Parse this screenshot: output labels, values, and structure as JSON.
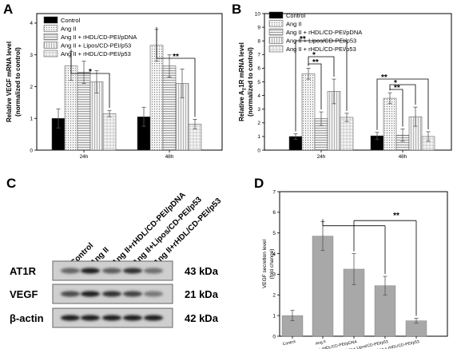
{
  "panels": {
    "A": "A",
    "B": "B",
    "C": "C",
    "D": "D"
  },
  "blot": {
    "lanes": [
      "Control",
      "Ang II",
      "Ang II+rHDL/CD-PEI/pDNA",
      "Ang II+Lipos/CD-PEI/p53",
      "Ang II+rHDL/CD-PEI/p53"
    ],
    "rows": [
      {
        "name": "AT1R",
        "size": "43 kDa",
        "intensity": [
          0.55,
          0.95,
          0.6,
          0.85,
          0.5
        ]
      },
      {
        "name": "VEGF",
        "size": "21 kDa",
        "intensity": [
          0.7,
          0.95,
          0.85,
          0.75,
          0.45
        ]
      },
      {
        "name": "β-actin",
        "size": "42 kDa",
        "intensity": [
          0.95,
          0.95,
          0.95,
          0.95,
          0.95
        ]
      }
    ]
  },
  "chart_data": [
    {
      "type": "bar",
      "panel": "A",
      "categories": [
        "24h",
        "48h"
      ],
      "ylabel": "Relative VEGF mRNA level (normalized to control)",
      "ylim": [
        0,
        4.3
      ],
      "yticks": [
        0,
        1,
        2,
        3,
        4
      ],
      "legend_position": "top-left",
      "series": [
        {
          "name": "Control",
          "values": [
            1.0,
            1.05
          ],
          "errors": [
            0.3,
            0.3
          ]
        },
        {
          "name": "Ang II",
          "values": [
            2.65,
            3.3
          ],
          "errors": [
            0.45,
            0.5
          ]
        },
        {
          "name": "Ang II + rHDL/CD-PEI/pDNA",
          "values": [
            2.45,
            2.65
          ],
          "errors": [
            0.35,
            0.35
          ]
        },
        {
          "name": "Ang II + Lipos/CD-PEI/p53",
          "values": [
            2.15,
            2.1
          ],
          "errors": [
            0.35,
            0.45
          ]
        },
        {
          "name": "Ang II + rHDL/CD-PEI/p53",
          "values": [
            1.15,
            0.82
          ],
          "errors": [
            0.1,
            0.15
          ]
        }
      ],
      "annotations": [
        {
          "text": "*",
          "group": 0,
          "from": 1,
          "to": 4
        },
        {
          "text": "**",
          "group": 1,
          "from": 1,
          "to": 4
        }
      ]
    },
    {
      "type": "bar",
      "panel": "B",
      "categories": [
        "24h",
        "48h"
      ],
      "ylabel": "Relative AT1R mRNA level (normalized to control)",
      "ylim": [
        0,
        10
      ],
      "yticks": [
        0,
        1,
        2,
        3,
        4,
        5,
        6,
        7,
        8,
        9,
        10
      ],
      "legend_position": "top-left",
      "series": [
        {
          "name": "Control",
          "values": [
            1.0,
            1.05
          ],
          "errors": [
            0.2,
            0.25
          ]
        },
        {
          "name": "Ang II",
          "values": [
            5.6,
            3.8
          ],
          "errors": [
            0.4,
            0.4
          ]
        },
        {
          "name": "Ang II + rHDL/CD-PEI/pDNA",
          "values": [
            2.3,
            1.1
          ],
          "errors": [
            0.5,
            0.45
          ]
        },
        {
          "name": "Ang II + Lipos/CD-PEI/p53",
          "values": [
            4.3,
            2.45
          ],
          "errors": [
            0.9,
            0.7
          ]
        },
        {
          "name": "Ang II + rHDL/CD-PEI/p53",
          "values": [
            2.4,
            1.0
          ],
          "errors": [
            0.3,
            0.35
          ]
        }
      ],
      "annotations": [
        {
          "text": "**",
          "group": 0,
          "from": 0,
          "to": 4
        },
        {
          "text": "*",
          "group": 0,
          "from": 1,
          "to": 3
        },
        {
          "text": "**",
          "group": 0,
          "from": 1,
          "to": 2
        },
        {
          "text": "**",
          "group": 1,
          "from": 0,
          "to": 4
        },
        {
          "text": "*",
          "group": 1,
          "from": 1,
          "to": 3
        },
        {
          "text": "**",
          "group": 1,
          "from": 1,
          "to": 2
        }
      ]
    },
    {
      "type": "bar",
      "panel": "D",
      "categories": [
        "Control",
        "Ang II",
        "Ang + rHDL/CD-PEI/pDNA",
        "Ang + Lipos/CD-PEI/p53",
        "Ang + rHDL/CD-PEI/p53"
      ],
      "values": [
        1.0,
        4.85,
        3.25,
        2.45,
        0.75
      ],
      "errors": [
        0.25,
        0.7,
        0.75,
        0.45,
        0.12
      ],
      "ylabel": "VEGF secretion level (fold change)",
      "ylim": [
        0,
        7
      ],
      "yticks": [
        0,
        1,
        2,
        3,
        4,
        5,
        6,
        7
      ],
      "annotations": [
        {
          "text": "**",
          "bars": [
            1,
            2,
            3
          ],
          "to": 4
        }
      ]
    }
  ],
  "colors": {
    "control": "#000000",
    "bar_fill": "#ececec",
    "d_bar": "#a8a8a8"
  }
}
